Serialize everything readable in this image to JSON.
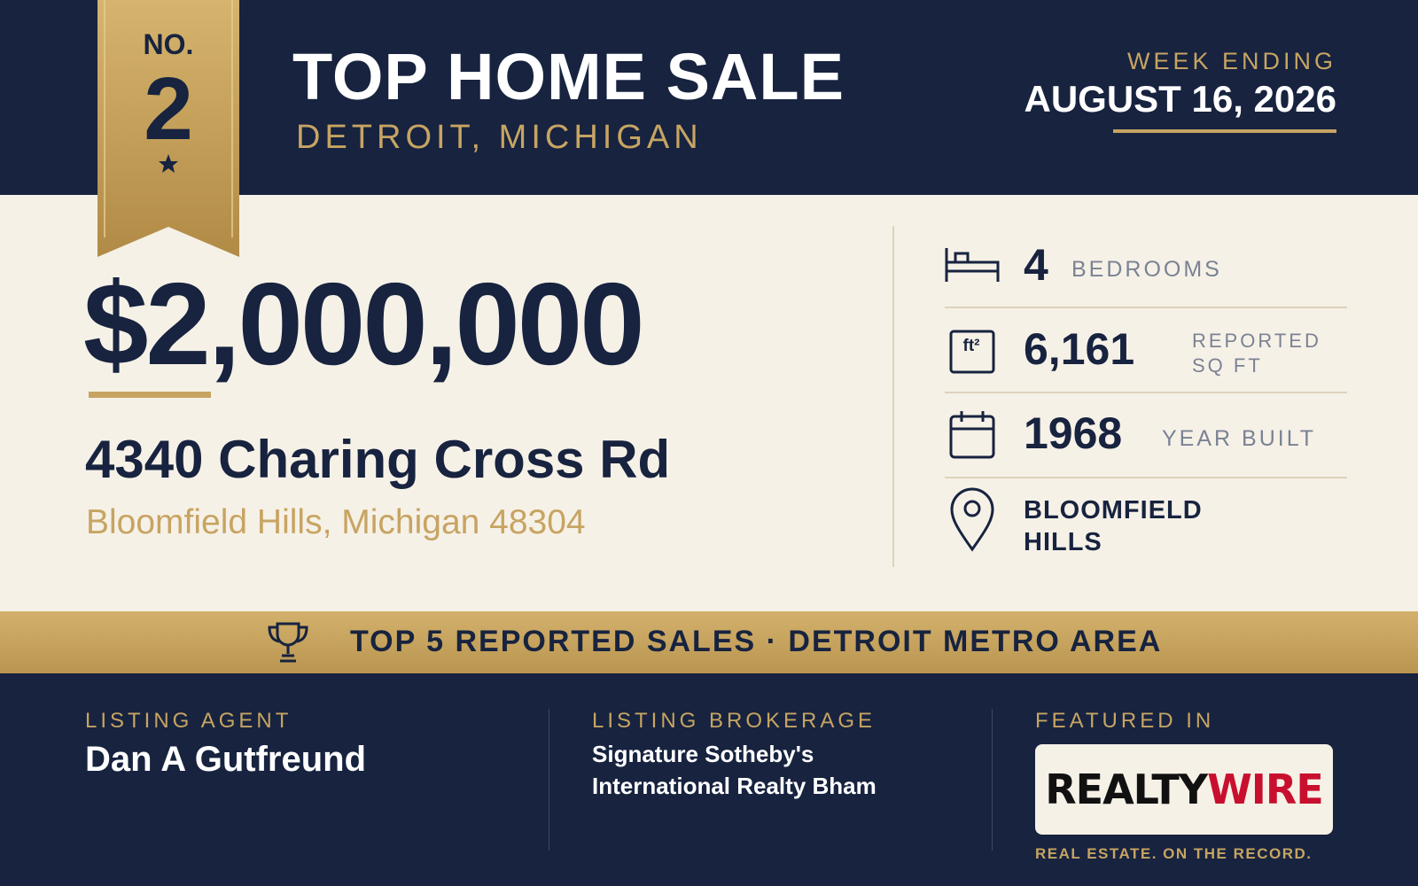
{
  "header": {
    "rank_label": "NO.",
    "rank": "2",
    "title": "TOP HOME SALE",
    "location": "DETROIT, MICHIGAN",
    "week_label": "WEEK ENDING",
    "week_date": "AUGUST 16, 2026"
  },
  "sale": {
    "price": "$2,000,000",
    "address": "4340 Charing Cross Rd",
    "city": "Bloomfield Hills, Michigan 48304"
  },
  "details": {
    "bedrooms": {
      "value": "4",
      "label": "BEDROOMS"
    },
    "sqft": {
      "icon": "ft²",
      "value": "6,161",
      "label_lines": [
        "REPORTED",
        "SQ FT"
      ]
    },
    "year": {
      "value": "1968",
      "label": "YEAR BUILT"
    },
    "area": {
      "lines": [
        "BLOOMFIELD",
        "HILLS"
      ]
    }
  },
  "banner": {
    "text": "TOP 5 REPORTED SALES · DETROIT METRO AREA"
  },
  "footer": {
    "agent": {
      "label": "LISTING AGENT",
      "name": "Dan A Gutfreund"
    },
    "brokerage": {
      "label": "LISTING BROKERAGE",
      "lines": [
        "Signature Sotheby's",
        "International Realty Bham"
      ]
    },
    "featured": {
      "label": "FEATURED IN",
      "logo_part1": "REALTY",
      "logo_part2": "WIRE",
      "tagline": "REAL ESTATE. ON THE RECORD."
    }
  }
}
